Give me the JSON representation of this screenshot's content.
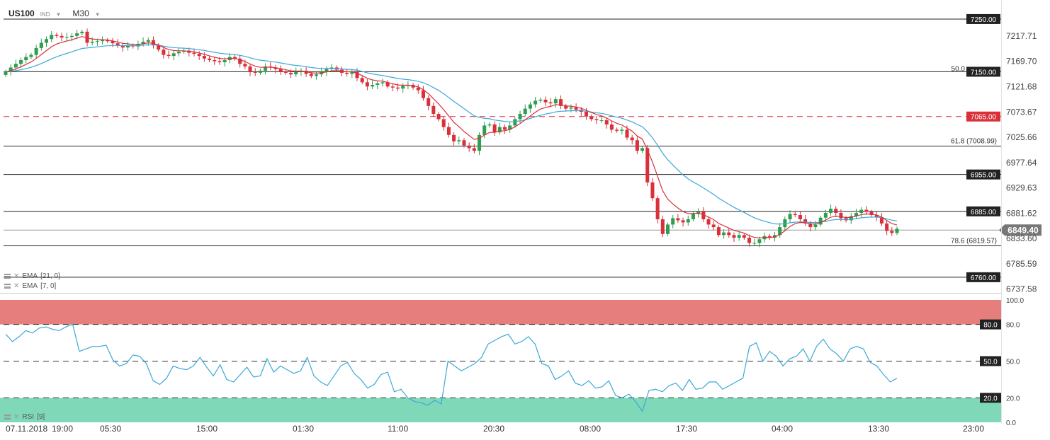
{
  "header": {
    "symbol": "US100",
    "market": "IND",
    "timeframe": "M30"
  },
  "indicators": {
    "ema_slow_label": "EMA",
    "ema_slow_params": "[21, 0]",
    "ema_fast_label": "EMA",
    "ema_fast_params": "[7, 0]",
    "rsi_label": "RSI",
    "rsi_params": "[9]"
  },
  "colors": {
    "up": "#2e9e4f",
    "down": "#d9303a",
    "ema_fast": "#d9303a",
    "ema_slow": "#3aa8d8",
    "rsi_line": "#3aa8d8",
    "rsi_overbought_zone": "#e77e7e",
    "rsi_oversold_zone": "#7fd9b8",
    "level_label_bg": "#222222",
    "current_price_bg": "#777777"
  },
  "chart_data": [
    {
      "type": "candlestick",
      "title": "US100 M30",
      "y_axis_ticks": [
        "7217.71",
        "7169.70",
        "7121.68",
        "7073.67",
        "7025.66",
        "6977.64",
        "6929.63",
        "6881.62",
        "6833.60",
        "6785.59",
        "6737.58"
      ],
      "ylim": [
        6733,
        7262
      ],
      "x_tick_labels": [
        "07.11.2018",
        "19:00",
        "05:30",
        "15:00",
        "01:30",
        "11:00",
        "20:30",
        "08:00",
        "17:30",
        "04:00",
        "13:30",
        "23:00"
      ],
      "current_price": 6849.4,
      "current_price_label": "6849.40",
      "horizontal_levels": [
        {
          "value": 7250.0,
          "label": "7250.00",
          "style": "solid"
        },
        {
          "value": 7150.0,
          "label": "7150.00",
          "style": "solid",
          "fib": "50.0"
        },
        {
          "value": 7065.0,
          "label": "7065.00",
          "style": "dashed-red"
        },
        {
          "value": 7008.99,
          "label": "61.8 (7008.99)",
          "style": "fib"
        },
        {
          "value": 6955.0,
          "label": "6955.00",
          "style": "solid"
        },
        {
          "value": 6885.0,
          "label": "6885.00",
          "style": "solid"
        },
        {
          "value": 6819.57,
          "label": "78.6 (6819.57)",
          "style": "fib"
        },
        {
          "value": 6760.0,
          "label": "6760.00",
          "style": "solid"
        }
      ],
      "close_series": [
        7150,
        7158,
        7165,
        7172,
        7178,
        7182,
        7195,
        7205,
        7212,
        7220,
        7218,
        7215,
        7216,
        7218,
        7223,
        7226,
        7205,
        7207,
        7208,
        7210,
        7208,
        7204,
        7200,
        7196,
        7200,
        7198,
        7203,
        7207,
        7210,
        7200,
        7192,
        7182,
        7180,
        7185,
        7188,
        7190,
        7186,
        7184,
        7180,
        7175,
        7172,
        7170,
        7168,
        7172,
        7178,
        7175,
        7165,
        7160,
        7150,
        7148,
        7152,
        7160,
        7158,
        7155,
        7150,
        7148,
        7145,
        7150,
        7152,
        7146,
        7142,
        7145,
        7150,
        7155,
        7158,
        7154,
        7148,
        7146,
        7150,
        7138,
        7130,
        7122,
        7125,
        7128,
        7130,
        7122,
        7120,
        7118,
        7123,
        7125,
        7120,
        7115,
        7100,
        7085,
        7070,
        7060,
        7045,
        7030,
        7018,
        7020,
        7010,
        7005,
        7000,
        7030,
        7048,
        7050,
        7035,
        7045,
        7040,
        7048,
        7060,
        7070,
        7080,
        7088,
        7095,
        7097,
        7092,
        7090,
        7098,
        7085,
        7080,
        7082,
        7078,
        7074,
        7065,
        7060,
        7058,
        7058,
        7050,
        7040,
        7038,
        7040,
        7025,
        7020,
        7000,
        7005,
        6940,
        6910,
        6870,
        6842,
        6860,
        6872,
        6868,
        6864,
        6870,
        6880,
        6885,
        6870,
        6860,
        6855,
        6840,
        6845,
        6840,
        6835,
        6840,
        6835,
        6825,
        6825,
        6832,
        6838,
        6835,
        6840,
        6855,
        6870,
        6880,
        6878,
        6870,
        6862,
        6855,
        6860,
        6873,
        6882,
        6890,
        6882,
        6872,
        6868,
        6876,
        6882,
        6888,
        6884,
        6878,
        6874,
        6862,
        6848,
        6844,
        6852
      ]
    },
    {
      "type": "line",
      "title": "RSI [9]",
      "y_axis_ticks": [
        "100.0",
        "80.0",
        "50.0",
        "20.0",
        "0.0"
      ],
      "ylim": [
        0,
        100
      ],
      "levels": [
        {
          "value": 80.0,
          "label": "80.0"
        },
        {
          "value": 50.0,
          "label": "50.0"
        },
        {
          "value": 20.0,
          "label": "20.0"
        }
      ],
      "values": [
        72,
        66,
        70,
        75,
        73,
        77,
        78,
        76,
        75,
        78,
        80,
        58,
        60,
        62,
        62,
        63,
        51,
        46,
        48,
        55,
        54,
        48,
        34,
        31,
        36,
        46,
        44,
        43,
        46,
        53,
        45,
        38,
        47,
        35,
        33,
        39,
        45,
        37,
        38,
        52,
        41,
        46,
        43,
        40,
        42,
        53,
        38,
        33,
        30,
        38,
        46,
        49,
        40,
        35,
        28,
        31,
        39,
        41,
        25,
        27,
        20,
        17,
        16,
        14,
        18,
        15,
        50,
        46,
        42,
        45,
        48,
        53,
        64,
        67,
        70,
        72,
        64,
        66,
        70,
        64,
        48,
        46,
        35,
        38,
        42,
        32,
        30,
        34,
        28,
        29,
        34,
        22,
        20,
        23,
        17,
        9,
        26,
        27,
        25,
        30,
        32,
        26,
        35,
        27,
        28,
        33,
        33,
        27,
        30,
        33,
        36,
        62,
        65,
        50,
        58,
        54,
        46,
        52,
        54,
        60,
        50,
        62,
        68,
        60,
        56,
        50,
        60,
        62,
        60,
        49,
        46,
        39,
        33,
        36
      ]
    }
  ]
}
